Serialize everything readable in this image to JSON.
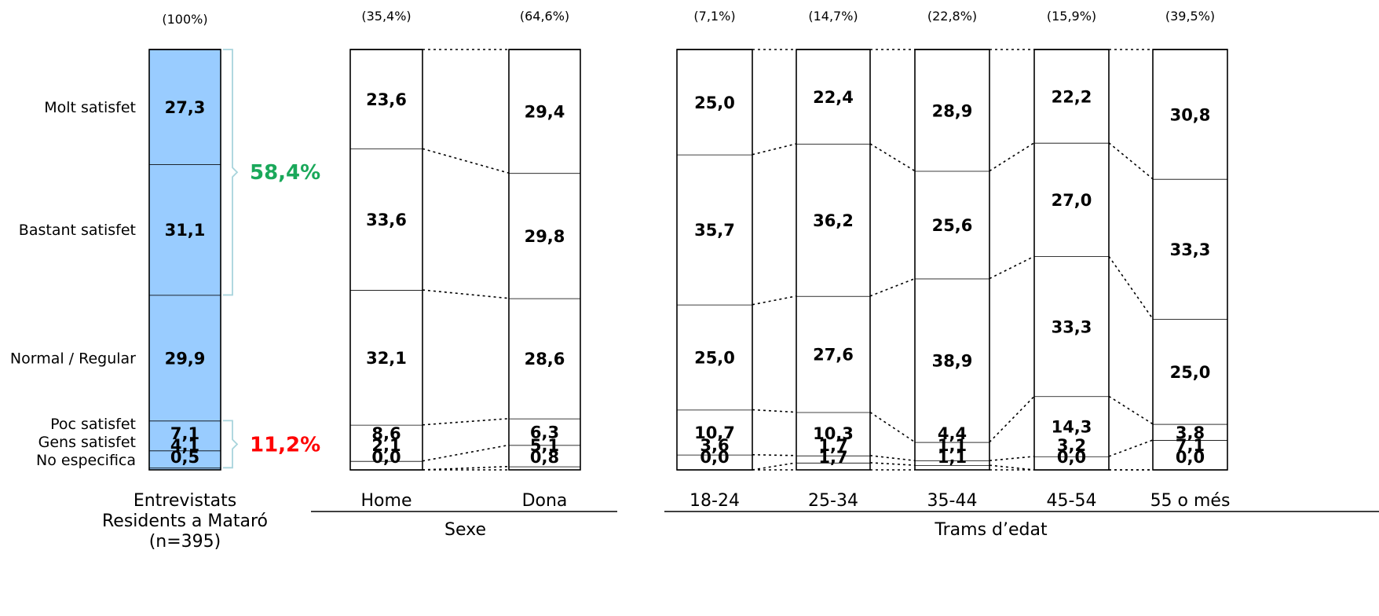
{
  "chart_data": {
    "type": "bar",
    "stacked": true,
    "orientation": "vertical",
    "unit": "%",
    "categories": [
      "No especifica",
      "Gens satisfet",
      "Poc satisfet",
      "Normal / Regular",
      "Bastant satisfet",
      "Molt satisfet"
    ],
    "category_labels": [
      "Molt satisfet",
      "Bastant satisfet",
      "Normal / Regular",
      "Poc satisfet",
      "Gens satisfet",
      "No especifica"
    ],
    "bars": [
      {
        "label": "Entrevistats\nResidents a Mataró\n(n=395)",
        "share": "(100%)",
        "values": [
          0.5,
          4.1,
          7.1,
          29.9,
          31.1,
          27.3
        ],
        "value_labels": [
          "0,5",
          "4,1",
          "7,1",
          "29,9",
          "31,1",
          "27,3"
        ]
      },
      {
        "label": "Home",
        "share": "(35,4%)",
        "values": [
          0.0,
          2.1,
          8.6,
          32.1,
          33.6,
          23.6
        ],
        "value_labels": [
          "0,0",
          "2,1",
          "8,6",
          "32,1",
          "33,6",
          "23,6"
        ]
      },
      {
        "label": "Dona",
        "share": "(64,6%)",
        "values": [
          0.8,
          5.1,
          6.3,
          28.6,
          29.8,
          29.4
        ],
        "value_labels": [
          "0,8",
          "5,1",
          "6,3",
          "28,6",
          "29,8",
          "29,4"
        ]
      },
      {
        "label": "18-24",
        "share": "(7,1%)",
        "values": [
          0.0,
          3.6,
          10.7,
          25.0,
          35.7,
          25.0
        ],
        "value_labels": [
          "0,0",
          "3,6",
          "10,7",
          "25,0",
          "35,7",
          "25,0"
        ]
      },
      {
        "label": "25-34",
        "share": "(14,7%)",
        "values": [
          1.7,
          1.7,
          10.3,
          27.6,
          36.2,
          22.4
        ],
        "value_labels": [
          "1,7",
          "1,7",
          "10,3",
          "27,6",
          "36,2",
          "22,4"
        ]
      },
      {
        "label": "35-44",
        "share": "(22,8%)",
        "values": [
          1.1,
          1.1,
          4.4,
          38.9,
          25.6,
          28.9
        ],
        "value_labels": [
          "1,1",
          "1,1",
          "4,4",
          "38,9",
          "25,6",
          "28,9"
        ]
      },
      {
        "label": "45-54",
        "share": "(15,9%)",
        "values": [
          0.0,
          3.2,
          14.3,
          33.3,
          27.0,
          22.2
        ],
        "value_labels": [
          "0,0",
          "3,2",
          "14,3",
          "33,3",
          "27,0",
          "22,2"
        ]
      },
      {
        "label": "55 o més",
        "share": "(39,5%)",
        "values": [
          0.0,
          7.1,
          3.8,
          25.0,
          33.3,
          30.8
        ],
        "value_labels": [
          "0,0",
          "7,1",
          "3,8",
          "25,0",
          "33,3",
          "30,8"
        ]
      }
    ],
    "groups": [
      {
        "label": "Sexe",
        "bars": [
          "Home",
          "Dona"
        ]
      },
      {
        "label": "Trams d’edat",
        "bars": [
          "18-24",
          "25-34",
          "35-44",
          "45-54",
          "55 o més"
        ]
      }
    ],
    "annotations": [
      {
        "text": "58,4%",
        "color": "#1aa85a",
        "spans": [
          "Bastant satisfet",
          "Molt satisfet"
        ]
      },
      {
        "text": "11,2%",
        "color": "#ff0000",
        "spans": [
          "Gens satisfet",
          "Poc satisfet"
        ]
      }
    ],
    "colors": {
      "total_bar": "#99ccff",
      "other_bars": "#ffffff",
      "outline": "#000000",
      "bracket": "#a8d4dc"
    }
  }
}
